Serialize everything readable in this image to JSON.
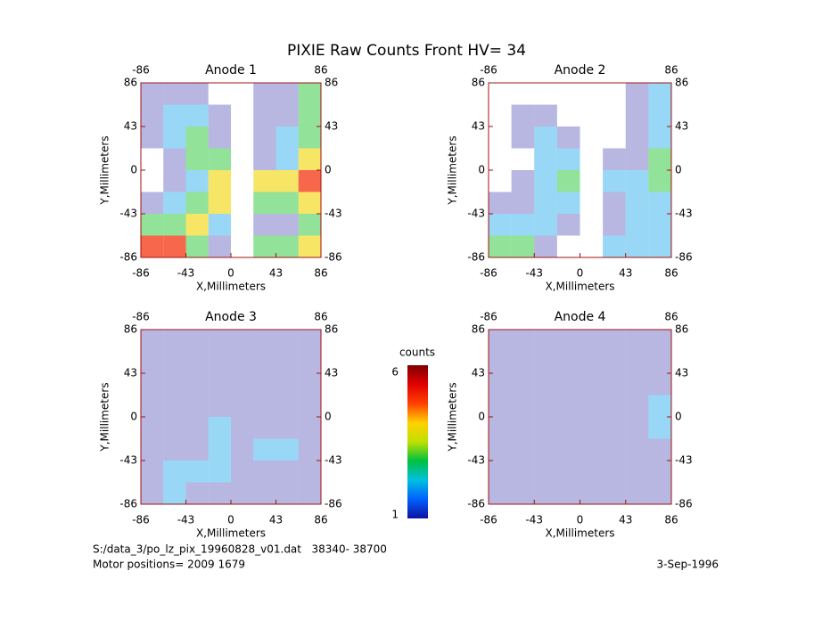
{
  "title": "PIXIE Raw Counts Front HV= 34",
  "chart_data": [
    {
      "type": "heatmap",
      "title": "Anode 1",
      "xlabel": "X,Millimeters",
      "ylabel": "Y,Millimeters",
      "xlim": [
        -86,
        86
      ],
      "ylim": [
        -86,
        86
      ],
      "xticks": [
        -86,
        -43,
        0,
        43,
        86
      ],
      "yticks": [
        86,
        43,
        0,
        -43,
        -86
      ],
      "x2ticks": [
        -86,
        86
      ],
      "y2ticks": [
        86,
        43,
        0,
        -43,
        -86
      ],
      "z": [
        [
          1,
          1,
          1,
          0,
          0,
          1,
          1,
          3
        ],
        [
          1,
          2,
          2,
          1,
          0,
          1,
          1,
          3
        ],
        [
          1,
          2,
          3,
          1,
          0,
          1,
          2,
          3
        ],
        [
          0,
          1,
          3,
          3,
          0,
          1,
          2,
          4
        ],
        [
          0,
          1,
          2,
          4,
          0,
          4,
          4,
          5
        ],
        [
          1,
          2,
          3,
          4,
          0,
          3,
          3,
          4
        ],
        [
          3,
          3,
          4,
          2,
          0,
          1,
          1,
          3
        ],
        [
          5,
          5,
          3,
          1,
          0,
          3,
          3,
          4
        ]
      ]
    },
    {
      "type": "heatmap",
      "title": "Anode 2",
      "xlabel": "X,Millimeters",
      "ylabel": "Y,Millimeters",
      "xlim": [
        -86,
        86
      ],
      "ylim": [
        -86,
        86
      ],
      "xticks": [
        -86,
        -43,
        0,
        43,
        86
      ],
      "yticks": [
        86,
        43,
        0,
        -43,
        -86
      ],
      "x2ticks": [
        -86,
        86
      ],
      "y2ticks": [
        86,
        43,
        0,
        -43,
        -86
      ],
      "z": [
        [
          0,
          0,
          0,
          0,
          0,
          0,
          1,
          2
        ],
        [
          0,
          1,
          1,
          0,
          0,
          0,
          1,
          2
        ],
        [
          0,
          1,
          2,
          1,
          0,
          0,
          1,
          2
        ],
        [
          0,
          0,
          2,
          2,
          0,
          1,
          1,
          3
        ],
        [
          0,
          1,
          2,
          3,
          0,
          2,
          2,
          3
        ],
        [
          1,
          1,
          2,
          2,
          0,
          1,
          2,
          2
        ],
        [
          2,
          2,
          2,
          1,
          0,
          1,
          2,
          2
        ],
        [
          3,
          3,
          1,
          0,
          0,
          2,
          2,
          2
        ]
      ]
    },
    {
      "type": "heatmap",
      "title": "Anode 3",
      "xlabel": "X,Millimeters",
      "ylabel": "Y,Millimeters",
      "xlim": [
        -86,
        86
      ],
      "ylim": [
        -86,
        86
      ],
      "xticks": [
        -86,
        -43,
        0,
        43,
        86
      ],
      "yticks": [
        86,
        43,
        0,
        -43,
        -86
      ],
      "x2ticks": [
        -86,
        86
      ],
      "y2ticks": [
        86,
        43,
        0,
        -43,
        -86
      ],
      "z": [
        [
          1,
          1,
          1,
          1,
          1,
          1,
          1,
          1
        ],
        [
          1,
          1,
          1,
          1,
          1,
          1,
          1,
          1
        ],
        [
          1,
          1,
          1,
          1,
          1,
          1,
          1,
          1
        ],
        [
          1,
          1,
          1,
          1,
          1,
          1,
          1,
          1
        ],
        [
          1,
          1,
          1,
          2,
          1,
          1,
          1,
          1
        ],
        [
          1,
          1,
          1,
          2,
          1,
          2,
          2,
          1
        ],
        [
          1,
          2,
          2,
          2,
          1,
          1,
          1,
          1
        ],
        [
          1,
          2,
          1,
          1,
          1,
          1,
          1,
          1
        ]
      ]
    },
    {
      "type": "heatmap",
      "title": "Anode 4",
      "xlabel": "X,Millimeters",
      "ylabel": "Y,Millimeters",
      "xlim": [
        -86,
        86
      ],
      "ylim": [
        -86,
        86
      ],
      "xticks": [
        -86,
        -43,
        0,
        43,
        86
      ],
      "yticks": [
        86,
        43,
        0,
        -43,
        -86
      ],
      "x2ticks": [
        -86,
        86
      ],
      "y2ticks": [
        86,
        43,
        0,
        -43,
        -86
      ],
      "z": [
        [
          1,
          1,
          1,
          1,
          1,
          1,
          1,
          1
        ],
        [
          1,
          1,
          1,
          1,
          1,
          1,
          1,
          1
        ],
        [
          1,
          1,
          1,
          1,
          1,
          1,
          1,
          1
        ],
        [
          1,
          1,
          1,
          1,
          1,
          1,
          1,
          2
        ],
        [
          1,
          1,
          1,
          1,
          1,
          1,
          1,
          2
        ],
        [
          1,
          1,
          1,
          1,
          1,
          1,
          1,
          1
        ],
        [
          1,
          1,
          1,
          1,
          1,
          1,
          1,
          1
        ],
        [
          1,
          1,
          1,
          1,
          1,
          1,
          1,
          1
        ]
      ]
    }
  ],
  "colorbar": {
    "label": "counts",
    "zlim": [
      1,
      6
    ],
    "ticks": [
      6,
      1
    ],
    "colormap": [
      "#1010a0",
      "#0060ff",
      "#00c0e0",
      "#00c040",
      "#c0e000",
      "#ffd000",
      "#ff4000",
      "#e00000",
      "#800000"
    ]
  },
  "footer": {
    "file": "S:/data_3/po_lz_pix_19960828_v01.dat   38340- 38700",
    "motor": "Motor positions= 2009 1679",
    "date": "3-Sep-1996"
  }
}
